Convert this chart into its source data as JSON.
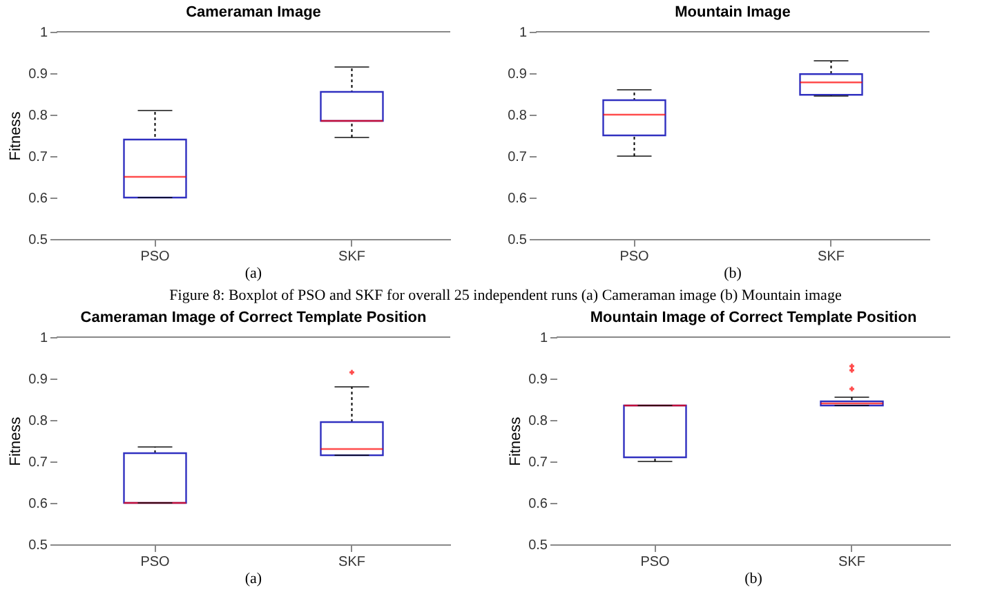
{
  "chart_data": [
    {
      "type": "box",
      "title": "Cameraman Image",
      "ylabel": "Fitness",
      "categories": [
        "PSO",
        "SKF"
      ],
      "ylim": [
        0.5,
        1
      ],
      "yticks": [
        0.5,
        0.6,
        0.7,
        0.8,
        0.9,
        1
      ],
      "grid": false,
      "annotations": [
        "(a)"
      ],
      "boxes": [
        {
          "low": 0.6,
          "q1": 0.6,
          "median": 0.65,
          "q3": 0.74,
          "high": 0.81
        },
        {
          "low": 0.745,
          "q1": 0.785,
          "median": 0.785,
          "q3": 0.855,
          "high": 0.915
        }
      ]
    },
    {
      "type": "box",
      "title": "Mountain Image",
      "categories": [
        "PSO",
        "SKF"
      ],
      "ylim": [
        0.5,
        1
      ],
      "yticks": [
        0.5,
        0.6,
        0.7,
        0.8,
        0.9,
        1
      ],
      "grid": false,
      "annotations": [
        "(b)",
        "Figure 8: Boxplot of PSO and SKF for overall 25 independent runs (a) Cameraman image (b) Mountain image"
      ],
      "boxes": [
        {
          "low": 0.7,
          "q1": 0.75,
          "median": 0.8,
          "q3": 0.835,
          "high": 0.86
        },
        {
          "low": 0.845,
          "q1": 0.848,
          "median": 0.878,
          "q3": 0.898,
          "high": 0.93
        }
      ]
    },
    {
      "type": "box",
      "title": "Cameraman Image of Correct Template Position",
      "ylabel": "Fitness",
      "categories": [
        "PSO",
        "SKF"
      ],
      "ylim": [
        0.5,
        1
      ],
      "yticks": [
        0.5,
        0.6,
        0.7,
        0.8,
        0.9,
        1
      ],
      "grid": false,
      "annotations": [
        "(a)"
      ],
      "boxes": [
        {
          "low": 0.6,
          "q1": 0.6,
          "median": 0.6,
          "q3": 0.72,
          "high": 0.735
        },
        {
          "low": 0.715,
          "q1": 0.715,
          "median": 0.73,
          "q3": 0.795,
          "high": 0.88,
          "outliers": [
            0.915
          ]
        }
      ]
    },
    {
      "type": "box",
      "title": "Mountain Image of Correct Template Position",
      "ylabel": "Fitness",
      "categories": [
        "PSO",
        "SKF"
      ],
      "ylim": [
        0.5,
        1
      ],
      "yticks": [
        0.5,
        0.6,
        0.7,
        0.8,
        0.9,
        1
      ],
      "grid": false,
      "annotations": [
        "(b)"
      ],
      "boxes": [
        {
          "low": 0.7,
          "q1": 0.71,
          "median": 0.835,
          "q3": 0.835,
          "high": 0.835
        },
        {
          "low": 0.835,
          "q1": 0.835,
          "median": 0.84,
          "q3": 0.845,
          "high": 0.855,
          "outliers": [
            0.875,
            0.92,
            0.93
          ]
        }
      ]
    }
  ]
}
